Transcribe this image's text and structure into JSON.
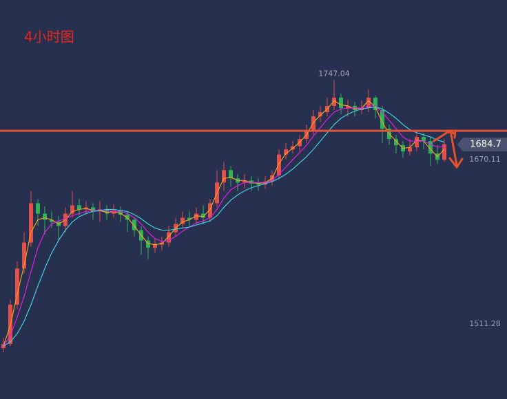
{
  "chart_data": {
    "type": "candlestick",
    "title": "4小时图",
    "ylim": [
      1438.9,
      1824.3
    ],
    "up_color": "#e0504c",
    "down_color": "#2fb35a",
    "open": [
      1488,
      1492,
      1530,
      1565,
      1590,
      1628,
      1618,
      1612,
      1610,
      1606,
      1618,
      1626,
      1622,
      1624,
      1620,
      1622,
      1618,
      1621,
      1617,
      1612,
      1602,
      1592,
      1585,
      1588,
      1590,
      1600,
      1608,
      1614,
      1612,
      1618,
      1614,
      1628,
      1648,
      1660,
      1652,
      1648,
      1650,
      1647,
      1646,
      1649,
      1655,
      1675,
      1680,
      1683,
      1690,
      1698,
      1712,
      1716,
      1722,
      1730,
      1720,
      1722,
      1718,
      1720,
      1730,
      1718,
      1700,
      1690,
      1684,
      1678,
      1682,
      1692,
      1688,
      1676,
      1670
    ],
    "high": [
      1498,
      1535,
      1572,
      1600,
      1640,
      1632,
      1625,
      1620,
      1616,
      1624,
      1640,
      1632,
      1630,
      1628,
      1630,
      1626,
      1627,
      1625,
      1620,
      1614,
      1606,
      1596,
      1594,
      1596,
      1606,
      1614,
      1620,
      1620,
      1624,
      1626,
      1632,
      1660,
      1668,
      1664,
      1656,
      1656,
      1654,
      1652,
      1654,
      1660,
      1680,
      1686,
      1688,
      1694,
      1704,
      1718,
      1722,
      1730,
      1747.04,
      1734,
      1728,
      1726,
      1727,
      1738,
      1732,
      1722,
      1704,
      1694,
      1688,
      1690,
      1698,
      1696,
      1692,
      1684,
      1690
    ],
    "low": [
      1484,
      1490,
      1526,
      1560,
      1586,
      1606,
      1598,
      1604,
      1592,
      1600,
      1614,
      1616,
      1618,
      1612,
      1610,
      1612,
      1614,
      1610,
      1600,
      1596,
      1578,
      1574,
      1580,
      1582,
      1586,
      1596,
      1604,
      1606,
      1608,
      1608,
      1610,
      1624,
      1640,
      1644,
      1640,
      1642,
      1640,
      1640,
      1642,
      1645,
      1652,
      1670,
      1676,
      1678,
      1686,
      1694,
      1706,
      1712,
      1718,
      1714,
      1712,
      1712,
      1714,
      1716,
      1710,
      1686,
      1684,
      1676,
      1672,
      1674,
      1678,
      1680,
      1664,
      1666,
      1668
    ],
    "close": [
      1492,
      1530,
      1565,
      1590,
      1628,
      1618,
      1612,
      1610,
      1606,
      1618,
      1626,
      1622,
      1624,
      1620,
      1622,
      1618,
      1621,
      1617,
      1612,
      1602,
      1592,
      1585,
      1588,
      1590,
      1600,
      1608,
      1614,
      1612,
      1618,
      1614,
      1628,
      1648,
      1660,
      1652,
      1648,
      1650,
      1647,
      1646,
      1649,
      1655,
      1675,
      1680,
      1683,
      1690,
      1698,
      1712,
      1716,
      1722,
      1730,
      1720,
      1722,
      1718,
      1720,
      1730,
      1718,
      1700,
      1690,
      1684,
      1678,
      1682,
      1692,
      1688,
      1676,
      1670,
      1685
    ],
    "lines": [
      {
        "color": "#f0a020",
        "values": [
          1490,
          1510,
          1540,
          1568,
          1600,
          1612,
          1614,
          1612,
          1608,
          1612,
          1620,
          1622,
          1623,
          1621,
          1621,
          1619,
          1620,
          1618,
          1614,
          1606,
          1597,
          1589,
          1588,
          1589,
          1596,
          1604,
          1610,
          1612,
          1616,
          1615,
          1622,
          1638,
          1652,
          1653,
          1650,
          1650,
          1648,
          1647,
          1648,
          1652,
          1666,
          1676,
          1681,
          1687,
          1694,
          1706,
          1713,
          1719,
          1727,
          1723,
          1722,
          1719,
          1720,
          1727,
          1721,
          1706,
          1695,
          1688,
          1681,
          1682,
          1689,
          1688,
          1680,
          1673,
          1680
        ]
      },
      {
        "color": "#e020e0",
        "values": [
          1490,
          1500,
          1518,
          1538,
          1562,
          1585,
          1600,
          1608,
          1611,
          1613,
          1616,
          1618,
          1620,
          1621,
          1621,
          1621,
          1620,
          1620,
          1618,
          1614,
          1608,
          1600,
          1594,
          1591,
          1592,
          1596,
          1601,
          1605,
          1609,
          1611,
          1614,
          1622,
          1633,
          1641,
          1645,
          1648,
          1648,
          1648,
          1648,
          1650,
          1656,
          1663,
          1670,
          1677,
          1684,
          1693,
          1701,
          1709,
          1716,
          1719,
          1720,
          1720,
          1720,
          1722,
          1722,
          1716,
          1708,
          1700,
          1692,
          1688,
          1688,
          1688,
          1685,
          1682,
          1683
        ]
      },
      {
        "color": "#40d0e0",
        "values": [
          1490,
          1494,
          1502,
          1514,
          1530,
          1548,
          1565,
          1580,
          1592,
          1602,
          1610,
          1615,
          1618,
          1620,
          1621,
          1622,
          1622,
          1621,
          1620,
          1617,
          1613,
          1608,
          1604,
          1602,
          1602,
          1603,
          1604,
          1605,
          1607,
          1609,
          1611,
          1616,
          1624,
          1631,
          1636,
          1640,
          1643,
          1645,
          1647,
          1649,
          1652,
          1656,
          1661,
          1667,
          1673,
          1680,
          1688,
          1696,
          1704,
          1710,
          1714,
          1717,
          1719,
          1720,
          1721,
          1719,
          1715,
          1710,
          1704,
          1699,
          1696,
          1694,
          1692,
          1689,
          1687
        ]
      }
    ],
    "level": {
      "value": 1698,
      "color": "#e0553a"
    },
    "high_label": 1747.04,
    "price_labels": [
      1670.11,
      1511.28
    ],
    "last_price": 1684.7
  }
}
